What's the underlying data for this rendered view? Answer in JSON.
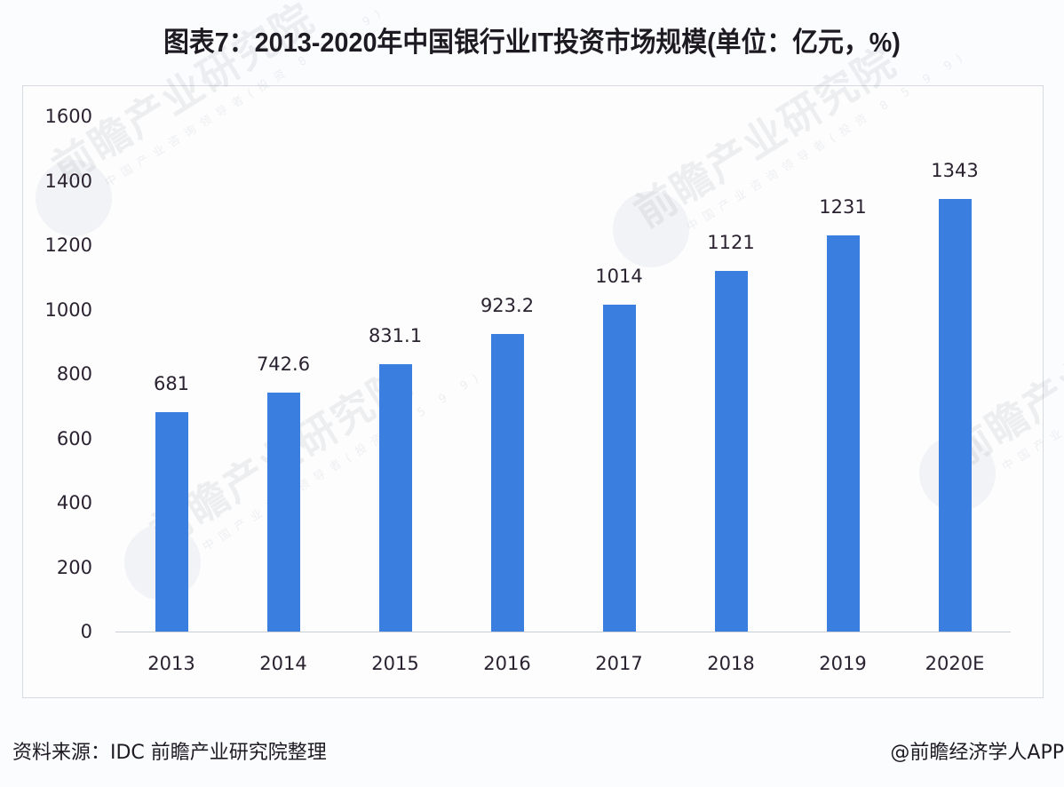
{
  "title": "图表7：2013-2020年中国银行业IT投资市场规模(单位：亿元，%)",
  "footer": {
    "source": "资料来源：IDC 前瞻产业研究院整理",
    "credit": "@前瞻经济学人APP"
  },
  "watermark": {
    "main": "前瞻产业研究院",
    "sub": "中国产业咨询领导者(投资 8 5 9 9)"
  },
  "colors": {
    "bar": "#3a7fe0",
    "axis": "#c9cdd4",
    "text": "#2b2230"
  },
  "chart_data": {
    "type": "bar",
    "title": "图表7：2013-2020年中国银行业IT投资市场规模(单位：亿元，%)",
    "xlabel": "",
    "ylabel": "",
    "categories": [
      "2013",
      "2014",
      "2015",
      "2016",
      "2017",
      "2018",
      "2019",
      "2020E"
    ],
    "values": [
      681,
      742.6,
      831.1,
      923.2,
      1014,
      1121,
      1231,
      1343
    ],
    "value_labels": [
      "681",
      "742.6",
      "831.1",
      "923.2",
      "1014",
      "1121",
      "1231",
      "1343"
    ],
    "ylim": [
      0,
      1600
    ],
    "yticks": [
      "0",
      "200",
      "400",
      "600",
      "800",
      "1000",
      "1200",
      "1400",
      "1600"
    ],
    "grid": false,
    "legend": null,
    "source": "资料来源：IDC 前瞻产业研究院整理"
  }
}
